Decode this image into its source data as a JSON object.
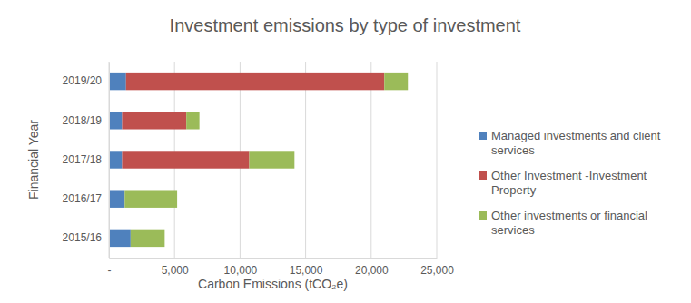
{
  "chart_data": {
    "type": "bar",
    "orientation": "horizontal",
    "stacked": true,
    "title": "Investment emissions by type of investment",
    "x_label": "Carbon Emissions (tCO₂e)",
    "y_label": "Financial Year",
    "categories": [
      "2019/20",
      "2018/19",
      "2017/18",
      "2016/17",
      "2015/16"
    ],
    "series": [
      {
        "name": "Managed investments and client services",
        "color": "#4f81bd",
        "values": [
          1300,
          1000,
          1000,
          1200,
          1650
        ]
      },
      {
        "name": "Other Investment -Investment Property",
        "color": "#c0504d",
        "values": [
          19700,
          4900,
          9700,
          0,
          0
        ]
      },
      {
        "name": "Other investments or financial services",
        "color": "#9bbb59",
        "values": [
          1800,
          1000,
          3450,
          4000,
          2600
        ]
      }
    ],
    "xlim": [
      0,
      25000
    ],
    "xticks": [
      {
        "value": 0,
        "label": "-"
      },
      {
        "value": 5000,
        "label": "5,000"
      },
      {
        "value": 10000,
        "label": "10,000"
      },
      {
        "value": 15000,
        "label": "15,000"
      },
      {
        "value": 20000,
        "label": "20,000"
      },
      {
        "value": 25000,
        "label": "25,000"
      }
    ],
    "grid": true,
    "legend": "right"
  }
}
